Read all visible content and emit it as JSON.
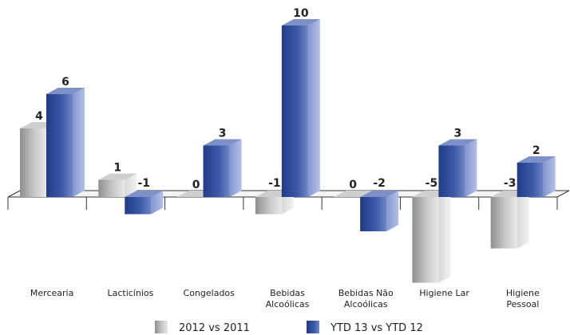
{
  "chart_data": {
    "type": "bar",
    "style": "3d-grouped",
    "categories": [
      [
        "Mercearia"
      ],
      [
        "Lacticínios"
      ],
      [
        "Congelados"
      ],
      [
        "Bebidas",
        "Alcoólicas"
      ],
      [
        "Bebidas Não",
        "Alcoólicas"
      ],
      [
        "Higiene Lar"
      ],
      [
        "Higiene",
        "Pessoal"
      ]
    ],
    "series": [
      {
        "name": "2012 vs 2011",
        "color": "#a9a9a9",
        "values": [
          4,
          1,
          0,
          -1,
          0,
          -5,
          -3
        ]
      },
      {
        "name": "YTD 13 vs YTD 12",
        "color": "#2f4c9a",
        "values": [
          6,
          -1,
          3,
          10,
          -2,
          3,
          2
        ]
      }
    ],
    "ylim": [
      -5,
      10
    ],
    "grid": false,
    "legend_position": "bottom"
  }
}
